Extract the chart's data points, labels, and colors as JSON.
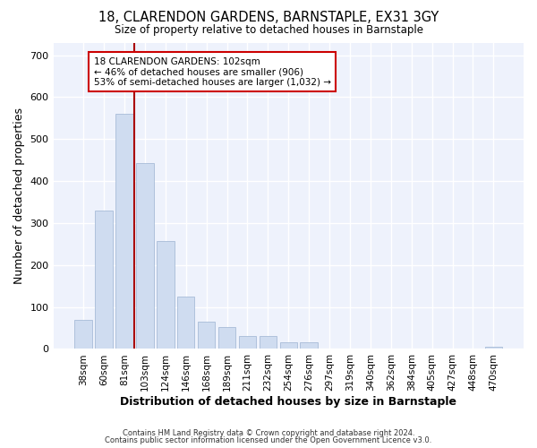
{
  "title": "18, CLARENDON GARDENS, BARNSTAPLE, EX31 3GY",
  "subtitle": "Size of property relative to detached houses in Barnstaple",
  "xlabel": "Distribution of detached houses by size in Barnstaple",
  "ylabel": "Number of detached properties",
  "categories": [
    "38sqm",
    "60sqm",
    "81sqm",
    "103sqm",
    "124sqm",
    "146sqm",
    "168sqm",
    "189sqm",
    "211sqm",
    "232sqm",
    "254sqm",
    "276sqm",
    "297sqm",
    "319sqm",
    "340sqm",
    "362sqm",
    "384sqm",
    "405sqm",
    "427sqm",
    "448sqm",
    "470sqm"
  ],
  "values": [
    70,
    330,
    560,
    443,
    258,
    125,
    64,
    52,
    30,
    30,
    16,
    15,
    0,
    0,
    0,
    0,
    0,
    0,
    0,
    0,
    6
  ],
  "bar_color": "#cfdcf0",
  "bar_edge_color": "#a8bcd8",
  "vline_x": 3,
  "vline_color": "#aa0000",
  "annotation_lines": [
    "18 CLARENDON GARDENS: 102sqm",
    "← 46% of detached houses are smaller (906)",
    "53% of semi-detached houses are larger (1,032) →"
  ],
  "annotation_box_color": "#cc0000",
  "background_color": "#eef2fc",
  "ylim": [
    0,
    730
  ],
  "yticks": [
    0,
    100,
    200,
    300,
    400,
    500,
    600,
    700
  ],
  "footer1": "Contains HM Land Registry data © Crown copyright and database right 2024.",
  "footer2": "Contains public sector information licensed under the Open Government Licence v3.0."
}
